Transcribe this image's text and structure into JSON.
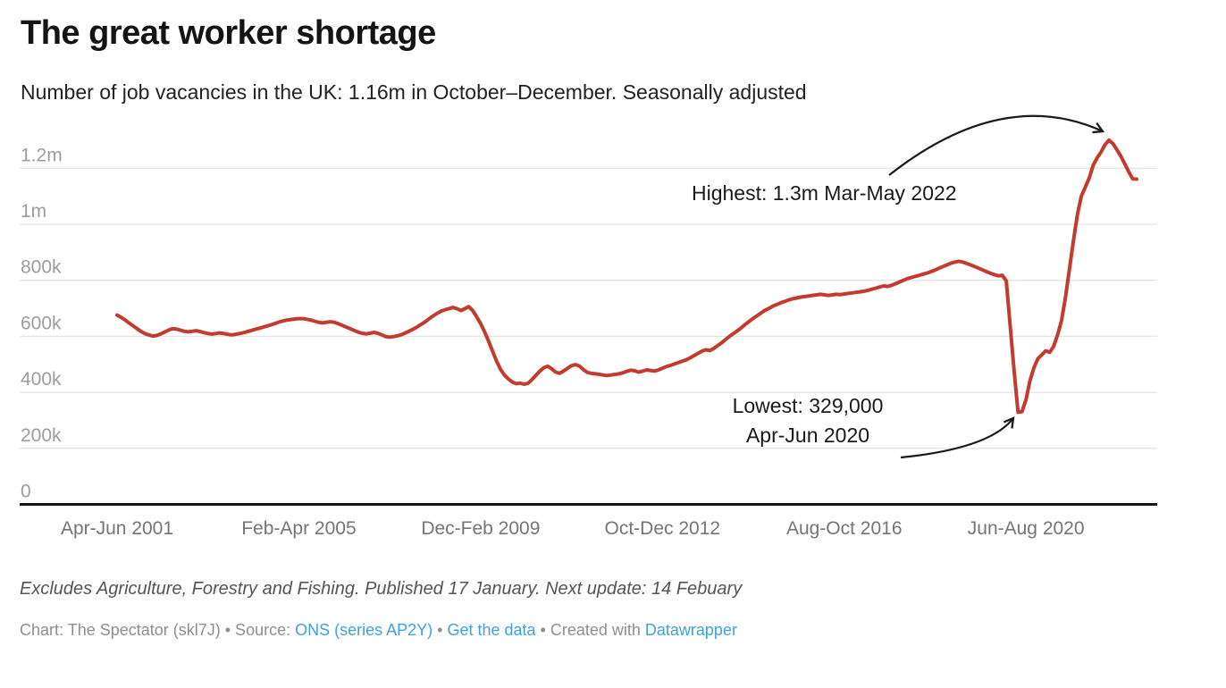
{
  "header": {
    "title": "The great worker shortage",
    "subtitle": "Number of job vacancies in the UK: 1.16m in October–December. Seasonally adjusted"
  },
  "chart_data": {
    "type": "line",
    "title": "The great worker shortage",
    "subtitle": "Number of job vacancies in the UK: 1.16m in October–December. Seasonally adjusted",
    "unit": "thousands of vacancies",
    "frequency": "monthly rolling three-month periods",
    "start_period": "Apr-Jun 2001",
    "end_period": "Oct-Dec 2022",
    "line_color": "#c23b2e",
    "grid": true,
    "legend_position": "none",
    "ylim_thousands": [
      0,
      1340
    ],
    "y_ticks": [
      {
        "value": 0,
        "label": "0"
      },
      {
        "value": 200,
        "label": "200k"
      },
      {
        "value": 400,
        "label": "400k"
      },
      {
        "value": 600,
        "label": "600k"
      },
      {
        "value": 800,
        "label": "800k"
      },
      {
        "value": 1000,
        "label": "1m"
      },
      {
        "value": 1200,
        "label": "1.2m"
      }
    ],
    "x_ticks": [
      {
        "index": 0,
        "label": "Apr-Jun 2001"
      },
      {
        "index": 46,
        "label": "Feb-Apr 2005"
      },
      {
        "index": 92,
        "label": "Dec-Feb 2009"
      },
      {
        "index": 138,
        "label": "Oct-Dec 2012"
      },
      {
        "index": 184,
        "label": "Aug-Oct 2016"
      },
      {
        "index": 230,
        "label": "Jun-Aug 2020"
      }
    ],
    "values_thousands": [
      676,
      668,
      659,
      648,
      638,
      628,
      618,
      610,
      605,
      601,
      603,
      608,
      615,
      622,
      627,
      626,
      622,
      618,
      616,
      618,
      620,
      617,
      613,
      610,
      608,
      610,
      612,
      610,
      607,
      605,
      607,
      610,
      613,
      617,
      621,
      625,
      629,
      633,
      637,
      641,
      646,
      651,
      655,
      658,
      660,
      662,
      663,
      663,
      661,
      658,
      654,
      650,
      648,
      650,
      652,
      650,
      645,
      639,
      633,
      627,
      621,
      615,
      611,
      609,
      611,
      614,
      611,
      605,
      599,
      597,
      599,
      602,
      606,
      612,
      619,
      626,
      634,
      643,
      652,
      663,
      673,
      682,
      690,
      695,
      699,
      703,
      699,
      692,
      699,
      706,
      692,
      670,
      645,
      616,
      583,
      548,
      512,
      483,
      462,
      448,
      437,
      431,
      433,
      429,
      432,
      446,
      461,
      476,
      488,
      493,
      484,
      472,
      468,
      476,
      486,
      495,
      499,
      494,
      481,
      471,
      468,
      466,
      464,
      462,
      460,
      462,
      464,
      466,
      470,
      475,
      479,
      477,
      472,
      476,
      480,
      478,
      476,
      480,
      486,
      492,
      496,
      501,
      506,
      511,
      516,
      523,
      531,
      539,
      547,
      552,
      549,
      557,
      567,
      577,
      589,
      600,
      610,
      620,
      631,
      643,
      654,
      664,
      674,
      684,
      693,
      700,
      708,
      714,
      720,
      725,
      730,
      734,
      737,
      740,
      742,
      744,
      746,
      748,
      750,
      748,
      746,
      748,
      750,
      749,
      751,
      753,
      755,
      757,
      759,
      761,
      764,
      768,
      772,
      776,
      780,
      778,
      782,
      788,
      794,
      800,
      806,
      810,
      814,
      818,
      822,
      826,
      831,
      837,
      843,
      849,
      855,
      861,
      865,
      868,
      865,
      860,
      855,
      849,
      843,
      837,
      831,
      825,
      820,
      816,
      818,
      798,
      637,
      476,
      329,
      331,
      374,
      441,
      487,
      520,
      534,
      548,
      543,
      564,
      606,
      657,
      740,
      840,
      940,
      1034,
      1100,
      1132,
      1165,
      1211,
      1237,
      1258,
      1284,
      1300,
      1288,
      1266,
      1243,
      1216,
      1187,
      1162,
      1161
    ],
    "annotations": {
      "highest": {
        "text": "Highest: 1.3m Mar-May 2022",
        "value_thousands": 1300,
        "period": "Mar-May 2022"
      },
      "lowest": {
        "line1": "Lowest: 329,000",
        "line2": "Apr-Jun 2020",
        "value_thousands": 329,
        "period": "Apr-Jun 2020"
      }
    }
  },
  "footer": {
    "note": "Excludes Agriculture, Forestry and Fishing. Published 17 January. Next update: 14 Febuary",
    "attribution": {
      "prefix": "Chart: The Spectator (skl7J) • Source: ",
      "source_link": "ONS (series AP2Y)",
      "sep1": " • ",
      "data_link": "Get the data",
      "sep2": " • Created with ",
      "tool_link": "Datawrapper"
    }
  },
  "colors": {
    "line": "#c23b2e",
    "link": "#3fa2d7",
    "gridline": "#e4e4e4",
    "axis_baseline": "#141414",
    "y_tick_text": "#9d9d9d",
    "x_tick_text": "#757575"
  }
}
